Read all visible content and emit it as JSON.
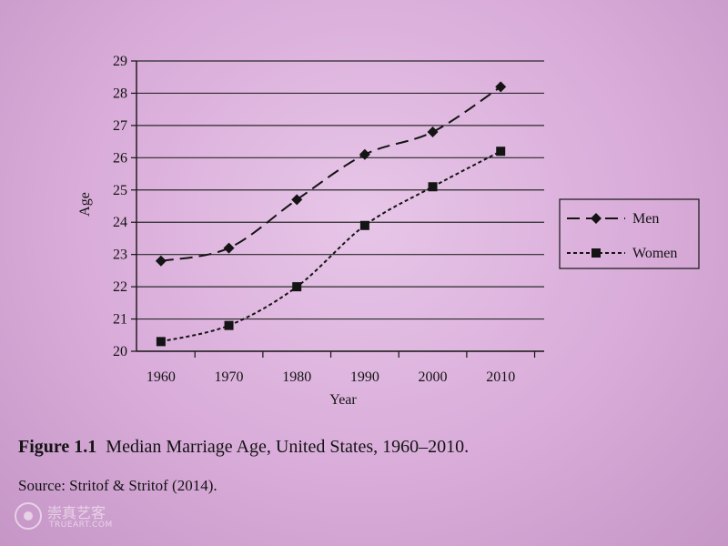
{
  "chart_data": {
    "type": "line",
    "x": [
      1960,
      1970,
      1980,
      1990,
      2000,
      2010
    ],
    "series": [
      {
        "name": "Men",
        "marker": "diamond",
        "dash": "long",
        "values": [
          22.8,
          23.2,
          24.7,
          26.1,
          26.8,
          28.2
        ]
      },
      {
        "name": "Women",
        "marker": "square",
        "dash": "short",
        "values": [
          20.3,
          20.8,
          22.0,
          23.9,
          25.1,
          26.2
        ]
      }
    ],
    "xlabel": "Year",
    "ylabel": "Age",
    "ylim": [
      20,
      29
    ],
    "yticks": [
      20,
      21,
      22,
      23,
      24,
      25,
      26,
      27,
      28,
      29
    ],
    "grid": "horizontal",
    "legend": "right",
    "colors": {
      "line": "#141414",
      "grid": "#2a2a2a"
    }
  },
  "caption": {
    "figure_number": "Figure 1.1",
    "title": "Median Marriage Age, United States, 1960–2010."
  },
  "source": "Source:  Stritof & Stritof (2014).",
  "watermark": {
    "chinese": "崇真艺客",
    "english": "TRUEART.COM"
  }
}
